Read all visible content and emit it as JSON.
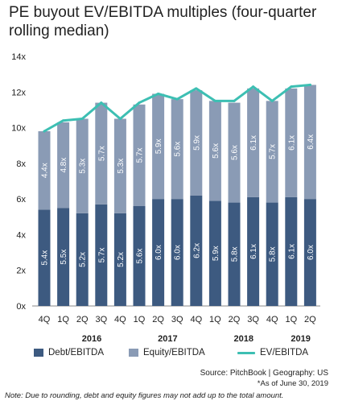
{
  "chart_data": {
    "type": "bar",
    "title": "PE buyout EV/EBITDA multiples (four-quarter rolling median)",
    "categories": [
      "4Q",
      "1Q",
      "2Q",
      "3Q",
      "4Q",
      "1Q",
      "2Q",
      "3Q",
      "4Q",
      "1Q",
      "2Q",
      "3Q",
      "4Q",
      "1Q",
      "2Q"
    ],
    "year_labels": [
      {
        "label": "2016",
        "span": [
          1,
          4
        ]
      },
      {
        "label": "2017",
        "span": [
          5,
          8
        ]
      },
      {
        "label": "2018",
        "span": [
          9,
          12
        ]
      },
      {
        "label": "2019",
        "span": [
          13,
          14
        ]
      }
    ],
    "yticks": [
      "0x",
      "2x",
      "4x",
      "6x",
      "8x",
      "10x",
      "12x",
      "14x"
    ],
    "ylim": [
      0,
      14
    ],
    "series": [
      {
        "name": "Debt/EBITDA",
        "kind": "bar",
        "stacked": true,
        "color": "#3d5a80",
        "values": [
          5.4,
          5.5,
          5.2,
          5.7,
          5.2,
          5.6,
          6.0,
          6.0,
          6.2,
          5.9,
          5.8,
          6.1,
          5.8,
          6.1,
          6.0
        ],
        "labels": [
          "5.4x",
          "5.5x",
          "5.2x",
          "5.7x",
          "5.2x",
          "5.6x",
          "6.0x",
          "6.0x",
          "6.2x",
          "5.9x",
          "5.8x",
          "6.1x",
          "5.8x",
          "6.1x",
          "6.0x"
        ]
      },
      {
        "name": "Equity/EBITDA",
        "kind": "bar",
        "stacked": true,
        "color": "#8a9bb5",
        "values": [
          4.4,
          4.8,
          5.3,
          5.7,
          5.3,
          5.7,
          5.9,
          5.6,
          5.9,
          5.6,
          5.6,
          6.1,
          5.7,
          6.1,
          6.4
        ],
        "labels": [
          "4.4x",
          "4.8x",
          "5.3x",
          "5.7x",
          "5.3x",
          "5.7x",
          "5.9x",
          "5.6x",
          "5.9x",
          "5.6x",
          "5.6x",
          "6.1x",
          "5.7x",
          "6.1x",
          "6.4x"
        ]
      },
      {
        "name": "EV/EBITDA",
        "kind": "line",
        "color": "#3dbfb3",
        "values": [
          9.8,
          10.4,
          10.5,
          11.4,
          10.5,
          11.4,
          11.9,
          11.6,
          12.2,
          11.5,
          11.5,
          12.3,
          11.5,
          12.3,
          12.4
        ]
      }
    ],
    "legend_position": "bottom",
    "grid": false
  },
  "legend": {
    "debt": "Debt/EBITDA",
    "equity": "Equity/EBITDA",
    "ev": "EV/EBITDA"
  },
  "footer": {
    "source": "Source: PitchBook | Geography: US",
    "asof": "*As of June 30, 2019",
    "note": "Note: Due to rounding, debt and equity figures may not add up to the total amount."
  }
}
